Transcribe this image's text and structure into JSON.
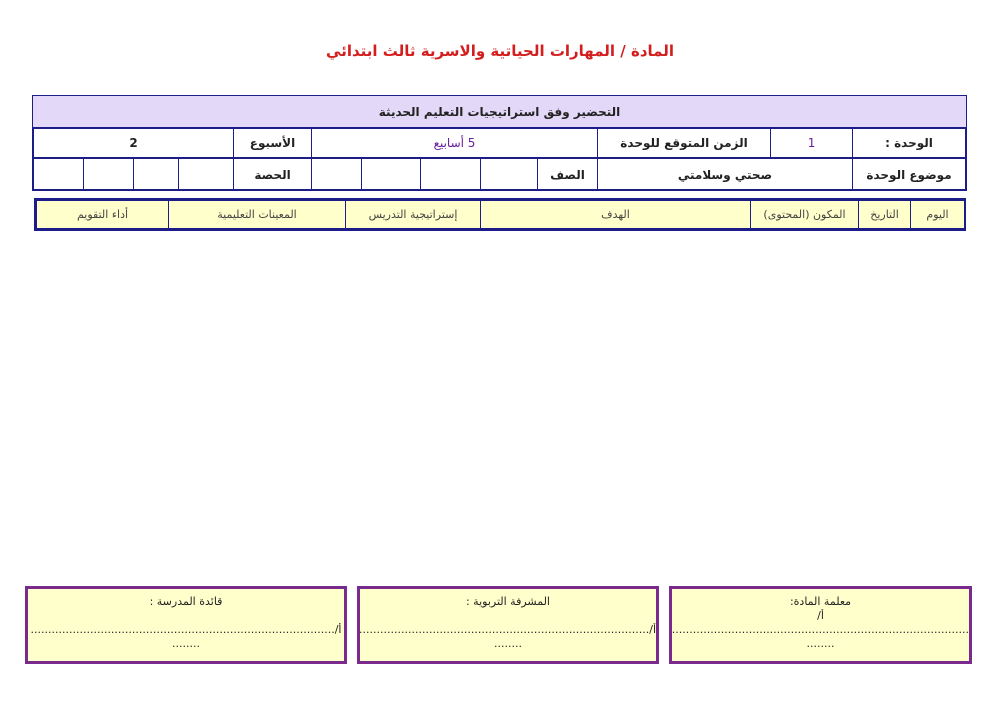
{
  "header": {
    "title": "المادة / المهارات الحياتية والاسرية ثالث ابتدائي"
  },
  "plan_table": {
    "heading": "التحضير وفق استراتيجيات التعليم الحديثة",
    "rows": [
      [
        "الوحدة :",
        1,
        "الزمن المتوقع للوحدة",
        "5 أسابيع",
        "الأسبوع",
        2
      ],
      [
        "موضوع الوحدة",
        "صحتي وسلامتي",
        "الصف",
        "الحصة"
      ]
    ]
  },
  "columns": [
    "اليوم",
    "التاريخ",
    "المكون (المحتوى)",
    "الهدف",
    "إستراتيجية التدريس",
    "المعينات التعليمية",
    "أداء التقويم"
  ],
  "signatures": [
    {
      "label": "معلمة المادة:",
      "line": "أ/",
      "dots": "..........................................................................................",
      "end": "........"
    },
    {
      "label": "المشرفة التربوية :",
      "line": "أ/.......................................................................................",
      "end": "........"
    },
    {
      "label": "قائدة المدرسة :",
      "line": "أ/.......................................................................................",
      "end": "........"
    }
  ]
}
